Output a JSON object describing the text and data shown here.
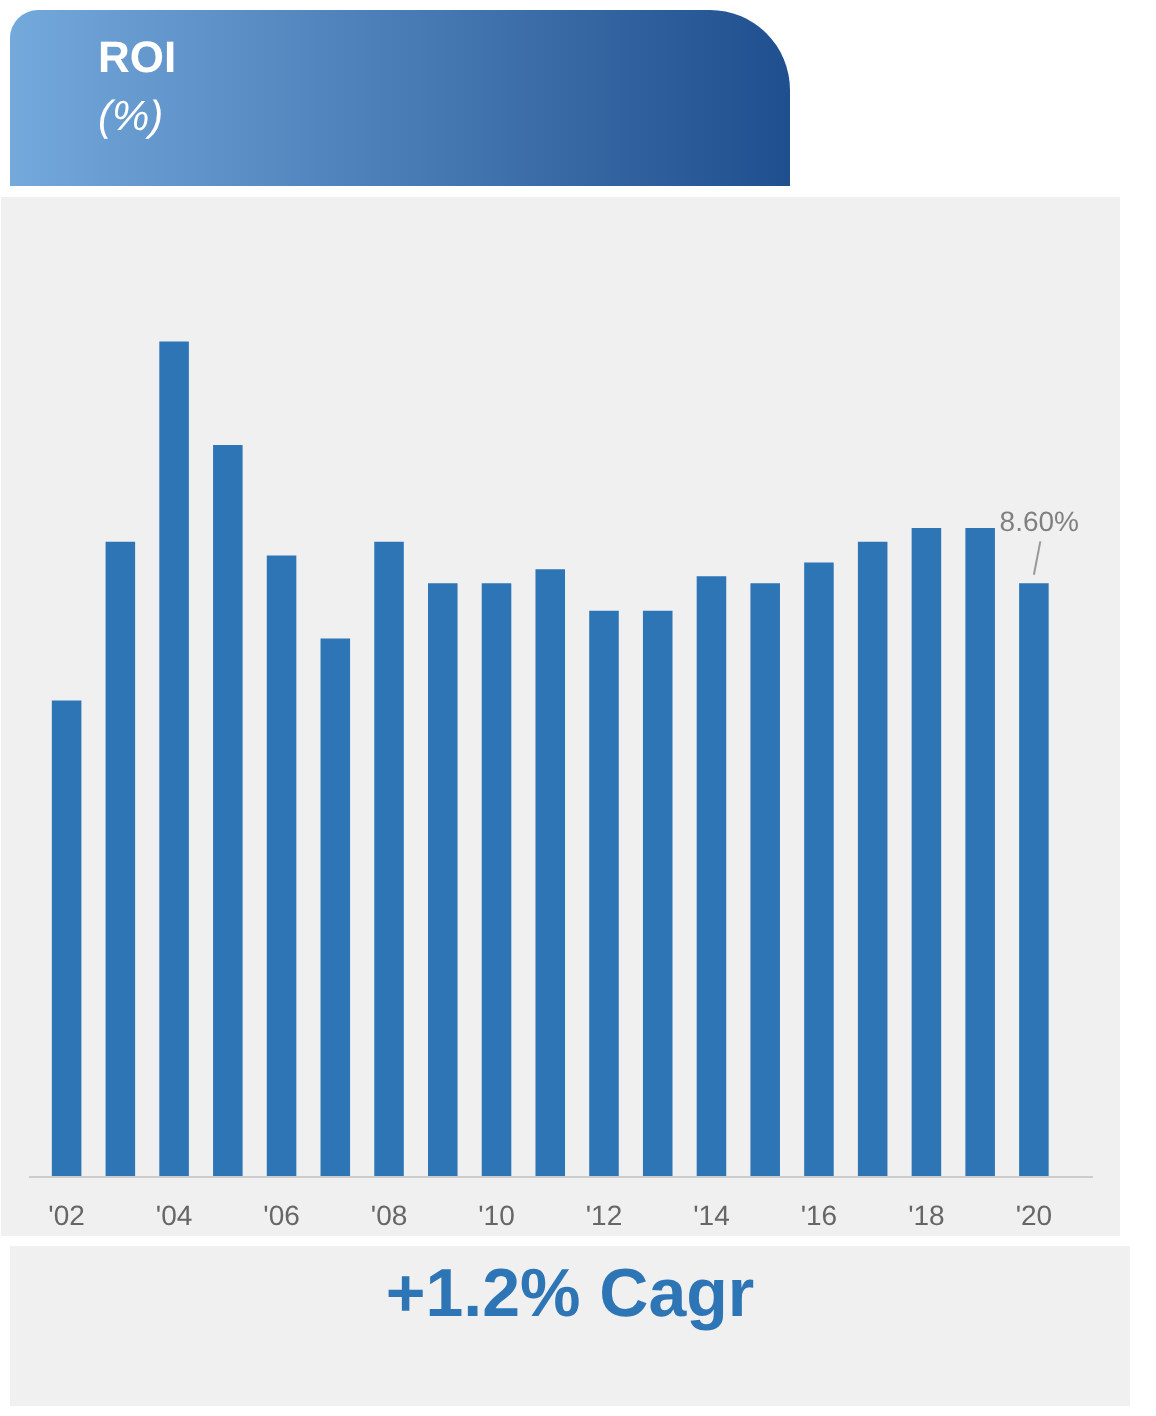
{
  "chart_data": {
    "type": "bar",
    "title": "ROI",
    "subtitle": "(%)",
    "tick_labels": "x",
    "categories": [
      "'02",
      null,
      "'04",
      null,
      "'06",
      null,
      "'08",
      null,
      "'10",
      null,
      "'12",
      null,
      "'14",
      null,
      "'16",
      null,
      "'18",
      null,
      "'20"
    ],
    "values": [
      6.9,
      9.2,
      12.1,
      10.6,
      9.0,
      7.8,
      9.2,
      8.6,
      8.6,
      8.8,
      8.2,
      8.2,
      8.7,
      8.6,
      8.9,
      9.2,
      9.4,
      9.4,
      8.6
    ],
    "value_labels": [
      null,
      null,
      null,
      null,
      null,
      null,
      null,
      null,
      null,
      null,
      null,
      null,
      null,
      null,
      null,
      null,
      null,
      null,
      "8.60%"
    ],
    "color": "#2e75b6",
    "annotations": [
      "+1.2% Cagr"
    ]
  }
}
